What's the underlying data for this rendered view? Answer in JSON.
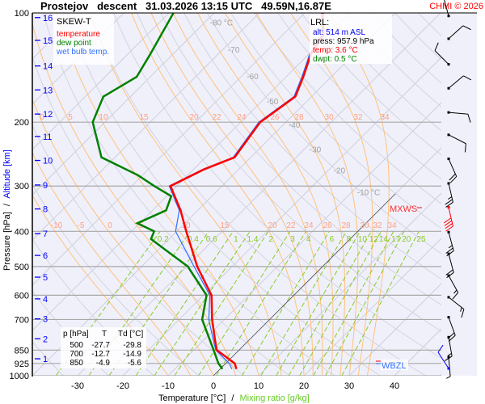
{
  "header": {
    "title": "Prostejov   descent   31.03.2026 13:15 UTC   49.59N,16.87E",
    "copyright": "CHMI © 2026"
  },
  "legend": {
    "title": "SKEW-T",
    "temperature": "temperature",
    "dew_point": "dew point",
    "wet_bulb": "wet bulb temp."
  },
  "lrl": {
    "title": "LRL:",
    "alt": "alt: 514 m ASL",
    "press": "press: 957.9 hPa",
    "temp": "temp: 3.6 °C",
    "dwpt": "dwpt: 0.5 °C"
  },
  "table": {
    "headers": [
      "p [hPa]",
      "T",
      "Td [°C]"
    ],
    "rows": [
      [
        "500",
        "-27.7",
        "-29.8"
      ],
      [
        "700",
        "-12.7",
        "-14.9"
      ],
      [
        "850",
        "-4.9",
        "-5.6"
      ]
    ]
  },
  "markers": {
    "mxws": "MXWS",
    "wbzl": "WBZL"
  },
  "axes": {
    "xlabel_temp": "Temperature [°C]",
    "xlabel_sep": "/",
    "xlabel_mix": "Mixing ratio [g/kg]",
    "ylabel_press": "Pressure [hPa]",
    "ylabel_sep": "/",
    "ylabel_alt": "Altitude [km]"
  },
  "colors": {
    "temperature": "#ff0000",
    "dew_point": "#008000",
    "wet_bulb": "#3070ff",
    "altitude": "#0000ff",
    "mixing_ratio": "#88cc22",
    "moist_adiabat": "#ffc278",
    "adiabat_label": "#ff9e80",
    "isotherm_label": "#a0a0a0"
  },
  "chart_data": {
    "type": "line",
    "title": "SKEW-T",
    "xlabel": "Temperature [°C] / Mixing ratio [g/kg]",
    "ylabel": "Pressure [hPa] / Altitude [km]",
    "pressure_range": [
      1000,
      100
    ],
    "temperature_range_at_1000hPa": [
      -38,
      50
    ],
    "pressure_ticks": [
      100,
      200,
      300,
      400,
      500,
      600,
      700,
      850,
      925,
      1000
    ],
    "temperature_ticks": [
      -30,
      -20,
      -10,
      0,
      10,
      20,
      30,
      40
    ],
    "altitude_ticks": [
      {
        "km": "16",
        "p": 103
      },
      {
        "km": "15",
        "p": 119
      },
      {
        "km": "14",
        "p": 140
      },
      {
        "km": "13",
        "p": 163
      },
      {
        "km": "12",
        "p": 190
      },
      {
        "km": "11",
        "p": 219
      },
      {
        "km": "10",
        "p": 255
      },
      {
        "km": "9",
        "p": 298
      },
      {
        "km": "8",
        "p": 347
      },
      {
        "km": "7",
        "p": 406
      },
      {
        "km": "6",
        "p": 466
      },
      {
        "km": "5",
        "p": 535
      },
      {
        "km": "4",
        "p": 614
      },
      {
        "km": "3",
        "p": 697
      },
      {
        "km": "2",
        "p": 791
      },
      {
        "km": "1",
        "p": 898
      }
    ],
    "isotherm_labels": [
      {
        "t": -80,
        "text": "-80 °C",
        "p": 106
      },
      {
        "t": -70,
        "text": "-70",
        "p": 126
      },
      {
        "t": -60,
        "text": "-60",
        "p": 149
      },
      {
        "t": -50,
        "text": "-50",
        "p": 175
      },
      {
        "t": -40,
        "text": "-40",
        "p": 203
      },
      {
        "t": -30,
        "text": "-30",
        "p": 237
      },
      {
        "t": -20,
        "text": "-20",
        "p": 271
      },
      {
        "t": -10,
        "text": "-10 °C",
        "p": 311
      }
    ],
    "adiabat_labels_upper": [
      "0",
      "5",
      "10",
      "15",
      "20",
      "22",
      "24",
      "26",
      "28",
      "30",
      "32",
      "34"
    ],
    "adiabat_labels_lower": [
      "-10",
      "-5",
      "0",
      "5",
      "10",
      "15",
      "20",
      "22",
      "24",
      "26",
      "28",
      "30",
      "32",
      "34"
    ],
    "moist_adiabats_thetaw": [
      -10,
      -5,
      0,
      5,
      10,
      15,
      20,
      22,
      24,
      26,
      28,
      30,
      32,
      34
    ],
    "mixing_ratio_labels": [
      "0.2",
      "0.4",
      "0.6",
      "1",
      "1.4",
      "2",
      "3",
      "4",
      "6",
      "8",
      "10",
      "12",
      "14",
      "17",
      "20",
      "25"
    ],
    "series": [
      {
        "name": "temperature",
        "p": [
          957.9,
          925,
          850,
          800,
          700,
          600,
          500,
          400,
          350,
          300,
          270,
          250,
          200,
          170,
          150,
          130,
          115,
          100
        ],
        "t": [
          3.6,
          2.0,
          -4.9,
          -7.4,
          -12.7,
          -18.2,
          -27.7,
          -37.9,
          -43.8,
          -51.4,
          -47.7,
          -43.6,
          -45.7,
          -43.6,
          -46.2,
          -49.5,
          -51.0,
          -56.0
        ]
      },
      {
        "name": "dew point",
        "p": [
          957.9,
          925,
          850,
          700,
          600,
          500,
          450,
          420,
          400,
          380,
          350,
          320,
          300,
          280,
          250,
          200,
          170,
          150,
          130,
          100
        ],
        "t": [
          0.5,
          -1.6,
          -5.6,
          -14.9,
          -19.3,
          -29.8,
          -38.4,
          -44.0,
          -45.0,
          -50.5,
          -47.0,
          -49.0,
          -55.0,
          -61.0,
          -73.0,
          -82.7,
          -86.0,
          -83.0,
          -85.0,
          -89.0
        ]
      }
    ],
    "wind_barbs": [
      {
        "km": 16,
        "dir": 345,
        "kt": 10
      },
      {
        "km": 15,
        "dir": 48,
        "kt": 10
      },
      {
        "km": 14,
        "dir": 315,
        "kt": 10
      },
      {
        "km": 13,
        "dir": 50,
        "kt": 10
      },
      {
        "km": 12,
        "dir": 95,
        "kt": 10
      },
      {
        "km": 11,
        "dir": 117,
        "kt": 10
      },
      {
        "km": 10,
        "dir": 156,
        "kt": 20
      },
      {
        "km": 9,
        "dir": 167,
        "kt": 25
      },
      {
        "km": 8,
        "dir": 167,
        "kt": 40,
        "max": true
      },
      {
        "km": 7,
        "dir": 165,
        "kt": 25
      },
      {
        "km": 6,
        "dir": 165,
        "kt": 20
      },
      {
        "km": 5,
        "dir": 151,
        "kt": 15
      },
      {
        "km": 4,
        "dir": 128,
        "kt": 15
      },
      {
        "km": 3,
        "dir": 160,
        "kt": 20
      },
      {
        "km": 2,
        "dir": 170,
        "kt": 15
      },
      {
        "km": 1,
        "dir": 175,
        "kt": 5
      },
      {
        "km": 0.5,
        "dir": 327,
        "kt": 10,
        "surface": true
      }
    ]
  }
}
